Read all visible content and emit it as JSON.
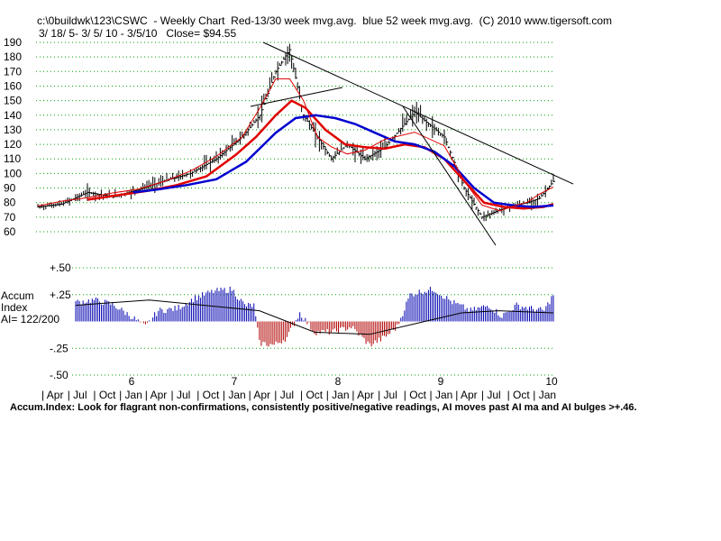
{
  "header": {
    "title": "c:\\0buildwk\\123\\CSWC  - Weekly Chart  Red-13/30 week mvg.avg.  blue 52 week mvg.avg.  (C) 2010 www.tigersoft.com",
    "subtitle": "3/ 18/ 5- 3/ 5/ 10 - 3/5/10   Close= $94.55"
  },
  "accum_label": {
    "line1": "Accum",
    "line2": "Index",
    "line3": "AI= 122/200"
  },
  "footnote": "Accum.Index: Look for flagrant non-confirmations, consistently positive/negative readings, AI moves past AI ma and AI bulges >+.46.",
  "colors": {
    "ma_short": "#e00000",
    "ma_long": "#0000d0",
    "ai_positive": "#0000b0",
    "ai_negative": "#b00000",
    "grid": "#00a000"
  },
  "chart_data": [
    {
      "type": "line",
      "name": "price-chart",
      "ylim": [
        55,
        190
      ],
      "y_ticks": [
        60,
        70,
        80,
        90,
        100,
        110,
        120,
        130,
        140,
        150,
        160,
        170,
        180,
        190
      ],
      "x_year_labels": [
        "6",
        "7",
        "8",
        "9",
        "10"
      ],
      "x_month_labels": [
        "Apr",
        "Jul",
        "Oct",
        "Jan",
        "Apr",
        "Jul",
        "Oct",
        "Jan",
        "Apr",
        "Jul",
        "Oct",
        "Jan",
        "Apr",
        "Jul",
        "Oct",
        "Jan",
        "Apr",
        "Jul",
        "Oct",
        "Jan"
      ],
      "grid": true,
      "close": 94.55,
      "price_x": [
        0,
        12,
        25,
        38,
        51,
        64,
        77,
        90,
        103,
        112,
        120,
        127,
        134,
        141,
        148,
        156,
        165,
        175,
        190,
        205,
        215,
        224,
        233,
        240,
        247,
        253,
        260
      ],
      "price_y": [
        77,
        79,
        87,
        84,
        89,
        95,
        100,
        110,
        125,
        140,
        170,
        185,
        140,
        125,
        110,
        120,
        110,
        118,
        142,
        125,
        90,
        70,
        75,
        78,
        80,
        83,
        94.55
      ],
      "series": [
        {
          "name": "Red-13/30 week mvg.avg.",
          "x": [
            25,
            40,
            55,
            70,
            85,
            100,
            110,
            120,
            128,
            135,
            145,
            155,
            165,
            175,
            185,
            195,
            205,
            215,
            225,
            235,
            245,
            255,
            260
          ],
          "values": [
            82,
            85,
            88,
            92,
            98,
            113,
            125,
            140,
            150,
            145,
            130,
            120,
            118,
            117,
            120,
            118,
            110,
            95,
            80,
            77,
            76,
            77,
            79
          ]
        },
        {
          "name": "blue 52 week mvg.avg.",
          "x": [
            48,
            60,
            75,
            90,
            105,
            120,
            130,
            140,
            150,
            160,
            170,
            180,
            190,
            200,
            210,
            220,
            230,
            240,
            250,
            260
          ],
          "values": [
            87,
            89,
            92,
            96,
            108,
            128,
            138,
            140,
            138,
            134,
            128,
            122,
            120,
            115,
            105,
            90,
            80,
            78,
            77,
            78
          ]
        }
      ]
    },
    {
      "type": "bar",
      "name": "accumulation-index",
      "ylim": [
        -0.5,
        0.5
      ],
      "y_ticks": [
        "+.50",
        "+.25",
        "-.25",
        "-.50"
      ],
      "x": [
        0,
        10,
        20,
        30,
        38,
        45,
        55,
        65,
        75,
        85,
        92,
        97,
        100,
        108,
        115,
        122,
        130,
        140,
        150,
        160,
        168,
        175,
        182,
        188,
        195,
        205,
        215,
        225,
        232,
        240,
        248,
        255,
        260
      ],
      "values": [
        0.18,
        0.2,
        0.16,
        0.05,
        -0.05,
        0.1,
        0.12,
        0.22,
        0.28,
        0.3,
        0.15,
        0.15,
        -0.2,
        -0.22,
        -0.15,
        0.08,
        -0.1,
        -0.1,
        -0.05,
        -0.22,
        -0.15,
        -0.05,
        0.25,
        0.28,
        0.3,
        0.18,
        0.1,
        0.15,
        0.05,
        0.15,
        0.12,
        0.1,
        0.25
      ],
      "ma_x": [
        0,
        40,
        100,
        130,
        160,
        190,
        210,
        230,
        260
      ],
      "ma_values": [
        0.15,
        0.2,
        0.1,
        -0.1,
        -0.12,
        0.0,
        0.08,
        0.1,
        0.08
      ]
    }
  ]
}
